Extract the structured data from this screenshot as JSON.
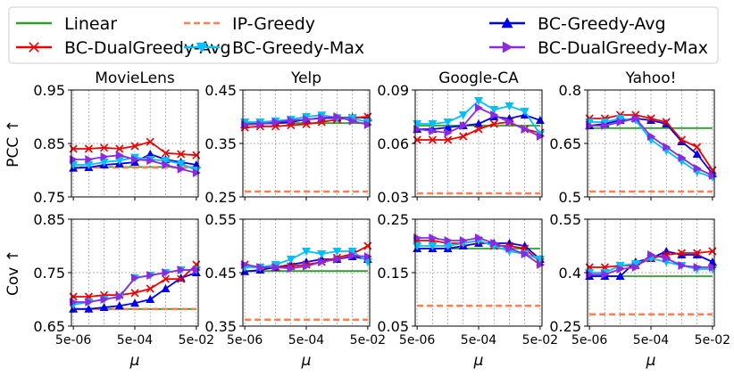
{
  "figure": {
    "x_axis_label": "μ",
    "x_tick_labels": [
      "5e-06",
      "5e-04",
      "5e-02"
    ],
    "row_labels": [
      "PCC ↑",
      "Cov ↑"
    ]
  },
  "legend": {
    "placement": "top",
    "entries": [
      {
        "label": "Linear",
        "color": "#2ca02c",
        "style": "solid",
        "marker": "none"
      },
      {
        "label": "IP-Greedy",
        "color": "#ff7f50",
        "style": "dashed",
        "marker": "none"
      },
      {
        "label": "BC-Greedy-Avg",
        "color": "#0000ee",
        "style": "solid",
        "marker": "triangle-up"
      },
      {
        "label": "BC-DualGreedy-Avg",
        "color": "#ee0000",
        "style": "solid",
        "marker": "x"
      },
      {
        "label": "BC-Greedy-Max",
        "color": "#00bfff",
        "style": "solid",
        "marker": "triangle-down"
      },
      {
        "label": "BC-DualGreedy-Max",
        "color": "#8a2be2",
        "style": "solid",
        "marker": "triangle-right"
      }
    ]
  },
  "chart_data": [
    {
      "type": "line",
      "title": "MovieLens",
      "ylabel": "PCC ↑",
      "xlabel": "μ",
      "x_scale": "log",
      "x": [
        5e-06,
        1e-05,
        5e-05,
        0.0001,
        0.0005,
        0.001,
        0.005,
        0.01,
        0.05
      ],
      "ylim": [
        0.75,
        0.95
      ],
      "yticks": [
        "0.75",
        "0.85",
        "0.95"
      ],
      "series": [
        {
          "name": "Linear",
          "values": [
            0.806,
            0.806,
            0.806,
            0.806,
            0.806,
            0.806,
            0.806,
            0.806,
            0.806
          ]
        },
        {
          "name": "IP-Greedy",
          "values": [
            0.805,
            0.805,
            0.805,
            0.805,
            0.805,
            0.805,
            0.805,
            0.805,
            0.805
          ]
        },
        {
          "name": "BC-Greedy-Avg",
          "values": [
            0.804,
            0.805,
            0.81,
            0.812,
            0.815,
            0.83,
            0.82,
            0.815,
            0.81
          ]
        },
        {
          "name": "BC-DualGreedy-Avg",
          "values": [
            0.84,
            0.84,
            0.842,
            0.84,
            0.845,
            0.853,
            0.832,
            0.83,
            0.828
          ]
        },
        {
          "name": "BC-Greedy-Max",
          "values": [
            0.81,
            0.81,
            0.815,
            0.818,
            0.824,
            0.82,
            0.818,
            0.812,
            0.8
          ]
        },
        {
          "name": "BC-DualGreedy-Max",
          "values": [
            0.82,
            0.82,
            0.825,
            0.828,
            0.82,
            0.818,
            0.81,
            0.802,
            0.795
          ]
        }
      ]
    },
    {
      "type": "line",
      "title": "Yelp",
      "ylabel": "",
      "xlabel": "μ",
      "x_scale": "log",
      "x": [
        5e-06,
        1e-05,
        5e-05,
        0.0001,
        0.0005,
        0.001,
        0.005,
        0.01,
        0.05
      ],
      "ylim": [
        0.25,
        0.45
      ],
      "yticks": [
        "0.25",
        "0.35",
        "0.45"
      ],
      "series": [
        {
          "name": "Linear",
          "values": [
            0.388,
            0.388,
            0.388,
            0.388,
            0.388,
            0.388,
            0.388,
            0.388,
            0.388
          ]
        },
        {
          "name": "IP-Greedy",
          "values": [
            0.26,
            0.26,
            0.26,
            0.26,
            0.26,
            0.26,
            0.26,
            0.26,
            0.26
          ]
        },
        {
          "name": "BC-Greedy-Avg",
          "values": [
            0.385,
            0.387,
            0.388,
            0.39,
            0.395,
            0.397,
            0.398,
            0.399,
            0.398
          ]
        },
        {
          "name": "BC-DualGreedy-Avg",
          "values": [
            0.38,
            0.382,
            0.382,
            0.384,
            0.386,
            0.39,
            0.395,
            0.398,
            0.4
          ]
        },
        {
          "name": "BC-Greedy-Max",
          "values": [
            0.39,
            0.39,
            0.392,
            0.395,
            0.4,
            0.403,
            0.398,
            0.397,
            0.39
          ]
        },
        {
          "name": "BC-DualGreedy-Max",
          "values": [
            0.385,
            0.386,
            0.39,
            0.393,
            0.395,
            0.398,
            0.4,
            0.392,
            0.385
          ]
        }
      ]
    },
    {
      "type": "line",
      "title": "Google-CA",
      "ylabel": "",
      "xlabel": "μ",
      "x_scale": "log",
      "x": [
        5e-06,
        1e-05,
        5e-05,
        0.0001,
        0.0005,
        0.001,
        0.005,
        0.01,
        0.05
      ],
      "ylim": [
        0.03,
        0.09
      ],
      "yticks": [
        "0.03",
        "0.06",
        "0.09"
      ],
      "series": [
        {
          "name": "Linear",
          "values": [
            0.07,
            0.07,
            0.07,
            0.07,
            0.07,
            0.07,
            0.07,
            0.07,
            0.07
          ]
        },
        {
          "name": "IP-Greedy",
          "values": [
            0.032,
            0.032,
            0.032,
            0.032,
            0.032,
            0.032,
            0.032,
            0.032,
            0.032
          ]
        },
        {
          "name": "BC-Greedy-Avg",
          "values": [
            0.068,
            0.068,
            0.069,
            0.07,
            0.071,
            0.075,
            0.074,
            0.076,
            0.073
          ]
        },
        {
          "name": "BC-DualGreedy-Avg",
          "values": [
            0.062,
            0.062,
            0.062,
            0.064,
            0.068,
            0.071,
            0.072,
            0.068,
            0.066
          ]
        },
        {
          "name": "BC-Greedy-Max",
          "values": [
            0.071,
            0.071,
            0.072,
            0.076,
            0.084,
            0.079,
            0.081,
            0.078,
            0.065
          ]
        },
        {
          "name": "BC-DualGreedy-Max",
          "values": [
            0.068,
            0.067,
            0.066,
            0.07,
            0.08,
            0.076,
            0.072,
            0.068,
            0.064
          ]
        }
      ]
    },
    {
      "type": "line",
      "title": "Yahoo!",
      "ylabel": "",
      "xlabel": "μ",
      "x_scale": "log",
      "x": [
        5e-06,
        1e-05,
        5e-05,
        0.0001,
        0.0005,
        0.001,
        0.005,
        0.01,
        0.05
      ],
      "ylim": [
        0.5,
        0.8
      ],
      "yticks": [
        "0.5",
        "0.65",
        "0.8"
      ],
      "series": [
        {
          "name": "Linear",
          "values": [
            0.693,
            0.693,
            0.693,
            0.693,
            0.693,
            0.693,
            0.693,
            0.693,
            0.693
          ]
        },
        {
          "name": "IP-Greedy",
          "values": [
            0.515,
            0.515,
            0.515,
            0.515,
            0.515,
            0.515,
            0.515,
            0.515,
            0.515
          ]
        },
        {
          "name": "BC-Greedy-Avg",
          "values": [
            0.7,
            0.705,
            0.715,
            0.72,
            0.715,
            0.705,
            0.655,
            0.62,
            0.565
          ]
        },
        {
          "name": "BC-DualGreedy-Avg",
          "values": [
            0.72,
            0.72,
            0.73,
            0.73,
            0.72,
            0.71,
            0.66,
            0.64,
            0.575
          ]
        },
        {
          "name": "BC-Greedy-Max",
          "values": [
            0.71,
            0.71,
            0.72,
            0.715,
            0.66,
            0.63,
            0.6,
            0.57,
            0.555
          ]
        },
        {
          "name": "BC-DualGreedy-Max",
          "values": [
            0.7,
            0.7,
            0.71,
            0.72,
            0.67,
            0.64,
            0.61,
            0.58,
            0.56
          ]
        }
      ]
    },
    {
      "type": "line",
      "title": "",
      "ylabel": "Cov ↑",
      "xlabel": "μ",
      "x_scale": "log",
      "x": [
        5e-06,
        1e-05,
        5e-05,
        0.0001,
        0.0005,
        0.001,
        0.005,
        0.01,
        0.05
      ],
      "ylim": [
        0.65,
        0.85
      ],
      "yticks": [
        "0.65",
        "0.75",
        "0.85"
      ],
      "series": [
        {
          "name": "Linear",
          "values": [
            0.682,
            0.682,
            0.682,
            0.682,
            0.682,
            0.682,
            0.682,
            0.682,
            0.682
          ]
        },
        {
          "name": "IP-Greedy",
          "values": [
            0.682,
            0.682,
            0.682,
            0.682,
            0.682,
            0.682,
            0.682,
            0.682,
            0.682
          ]
        },
        {
          "name": "BC-Greedy-Avg",
          "values": [
            0.682,
            0.682,
            0.685,
            0.688,
            0.693,
            0.7,
            0.72,
            0.74,
            0.75
          ]
        },
        {
          "name": "BC-DualGreedy-Avg",
          "values": [
            0.705,
            0.705,
            0.708,
            0.708,
            0.712,
            0.72,
            0.738,
            0.738,
            0.765
          ]
        },
        {
          "name": "BC-Greedy-Max",
          "values": [
            0.69,
            0.695,
            0.7,
            0.705,
            0.74,
            0.745,
            0.75,
            0.755,
            0.755
          ]
        },
        {
          "name": "BC-DualGreedy-Max",
          "values": [
            0.695,
            0.695,
            0.7,
            0.705,
            0.74,
            0.745,
            0.75,
            0.755,
            0.755
          ]
        }
      ]
    },
    {
      "type": "line",
      "title": "",
      "ylabel": "",
      "xlabel": "μ",
      "x_scale": "log",
      "x": [
        5e-06,
        1e-05,
        5e-05,
        0.0001,
        0.0005,
        0.001,
        0.005,
        0.01,
        0.05
      ],
      "ylim": [
        0.35,
        0.55
      ],
      "yticks": [
        "0.35",
        "0.45",
        "0.55"
      ],
      "series": [
        {
          "name": "Linear",
          "values": [
            0.453,
            0.453,
            0.453,
            0.453,
            0.453,
            0.453,
            0.453,
            0.453,
            0.453
          ]
        },
        {
          "name": "IP-Greedy",
          "values": [
            0.362,
            0.362,
            0.362,
            0.362,
            0.362,
            0.362,
            0.362,
            0.362,
            0.362
          ]
        },
        {
          "name": "BC-Greedy-Avg",
          "values": [
            0.452,
            0.455,
            0.46,
            0.465,
            0.47,
            0.475,
            0.475,
            0.48,
            0.475
          ]
        },
        {
          "name": "BC-DualGreedy-Avg",
          "values": [
            0.465,
            0.46,
            0.46,
            0.462,
            0.465,
            0.47,
            0.478,
            0.485,
            0.5
          ]
        },
        {
          "name": "BC-Greedy-Max",
          "values": [
            0.46,
            0.46,
            0.465,
            0.475,
            0.49,
            0.485,
            0.49,
            0.49,
            0.47
          ]
        },
        {
          "name": "BC-DualGreedy-Max",
          "values": [
            0.465,
            0.46,
            0.46,
            0.458,
            0.462,
            0.47,
            0.475,
            0.482,
            0.48
          ]
        }
      ]
    },
    {
      "type": "line",
      "title": "",
      "ylabel": "",
      "xlabel": "μ",
      "x_scale": "log",
      "x": [
        5e-06,
        1e-05,
        5e-05,
        0.0001,
        0.0005,
        0.001,
        0.005,
        0.01,
        0.05
      ],
      "ylim": [
        0.05,
        0.25
      ],
      "yticks": [
        "0.05",
        "0.15",
        "0.25"
      ],
      "series": [
        {
          "name": "Linear",
          "values": [
            0.195,
            0.195,
            0.195,
            0.195,
            0.195,
            0.195,
            0.195,
            0.195,
            0.195
          ]
        },
        {
          "name": "IP-Greedy",
          "values": [
            0.088,
            0.088,
            0.088,
            0.088,
            0.088,
            0.088,
            0.088,
            0.088,
            0.088
          ]
        },
        {
          "name": "BC-Greedy-Avg",
          "values": [
            0.195,
            0.195,
            0.195,
            0.2,
            0.205,
            0.205,
            0.205,
            0.2,
            0.175
          ]
        },
        {
          "name": "BC-DualGreedy-Avg",
          "values": [
            0.21,
            0.21,
            0.205,
            0.205,
            0.21,
            0.2,
            0.2,
            0.195,
            0.17
          ]
        },
        {
          "name": "BC-Greedy-Max",
          "values": [
            0.2,
            0.2,
            0.2,
            0.205,
            0.21,
            0.2,
            0.19,
            0.185,
            0.175
          ]
        },
        {
          "name": "BC-DualGreedy-Max",
          "values": [
            0.215,
            0.215,
            0.21,
            0.21,
            0.215,
            0.205,
            0.195,
            0.185,
            0.165
          ]
        }
      ]
    },
    {
      "type": "line",
      "title": "",
      "ylabel": "",
      "xlabel": "μ",
      "x_scale": "log",
      "x": [
        5e-06,
        1e-05,
        5e-05,
        0.0001,
        0.0005,
        0.001,
        0.005,
        0.01,
        0.05
      ],
      "ylim": [
        0.25,
        0.55
      ],
      "yticks": [
        "0.25",
        "0.4",
        "0.55"
      ],
      "series": [
        {
          "name": "Linear",
          "values": [
            0.39,
            0.39,
            0.39,
            0.39,
            0.39,
            0.39,
            0.39,
            0.39,
            0.39
          ]
        },
        {
          "name": "IP-Greedy",
          "values": [
            0.283,
            0.283,
            0.283,
            0.283,
            0.283,
            0.283,
            0.283,
            0.283,
            0.283
          ]
        },
        {
          "name": "BC-Greedy-Avg",
          "values": [
            0.39,
            0.39,
            0.39,
            0.43,
            0.44,
            0.46,
            0.45,
            0.45,
            0.43
          ]
        },
        {
          "name": "BC-DualGreedy-Avg",
          "values": [
            0.415,
            0.415,
            0.42,
            0.42,
            0.44,
            0.45,
            0.455,
            0.455,
            0.46
          ]
        },
        {
          "name": "BC-Greedy-Max",
          "values": [
            0.4,
            0.4,
            0.42,
            0.425,
            0.44,
            0.43,
            0.42,
            0.41,
            0.41
          ]
        },
        {
          "name": "BC-DualGreedy-Max",
          "values": [
            0.395,
            0.395,
            0.41,
            0.415,
            0.45,
            0.44,
            0.42,
            0.415,
            0.415
          ]
        }
      ]
    }
  ]
}
